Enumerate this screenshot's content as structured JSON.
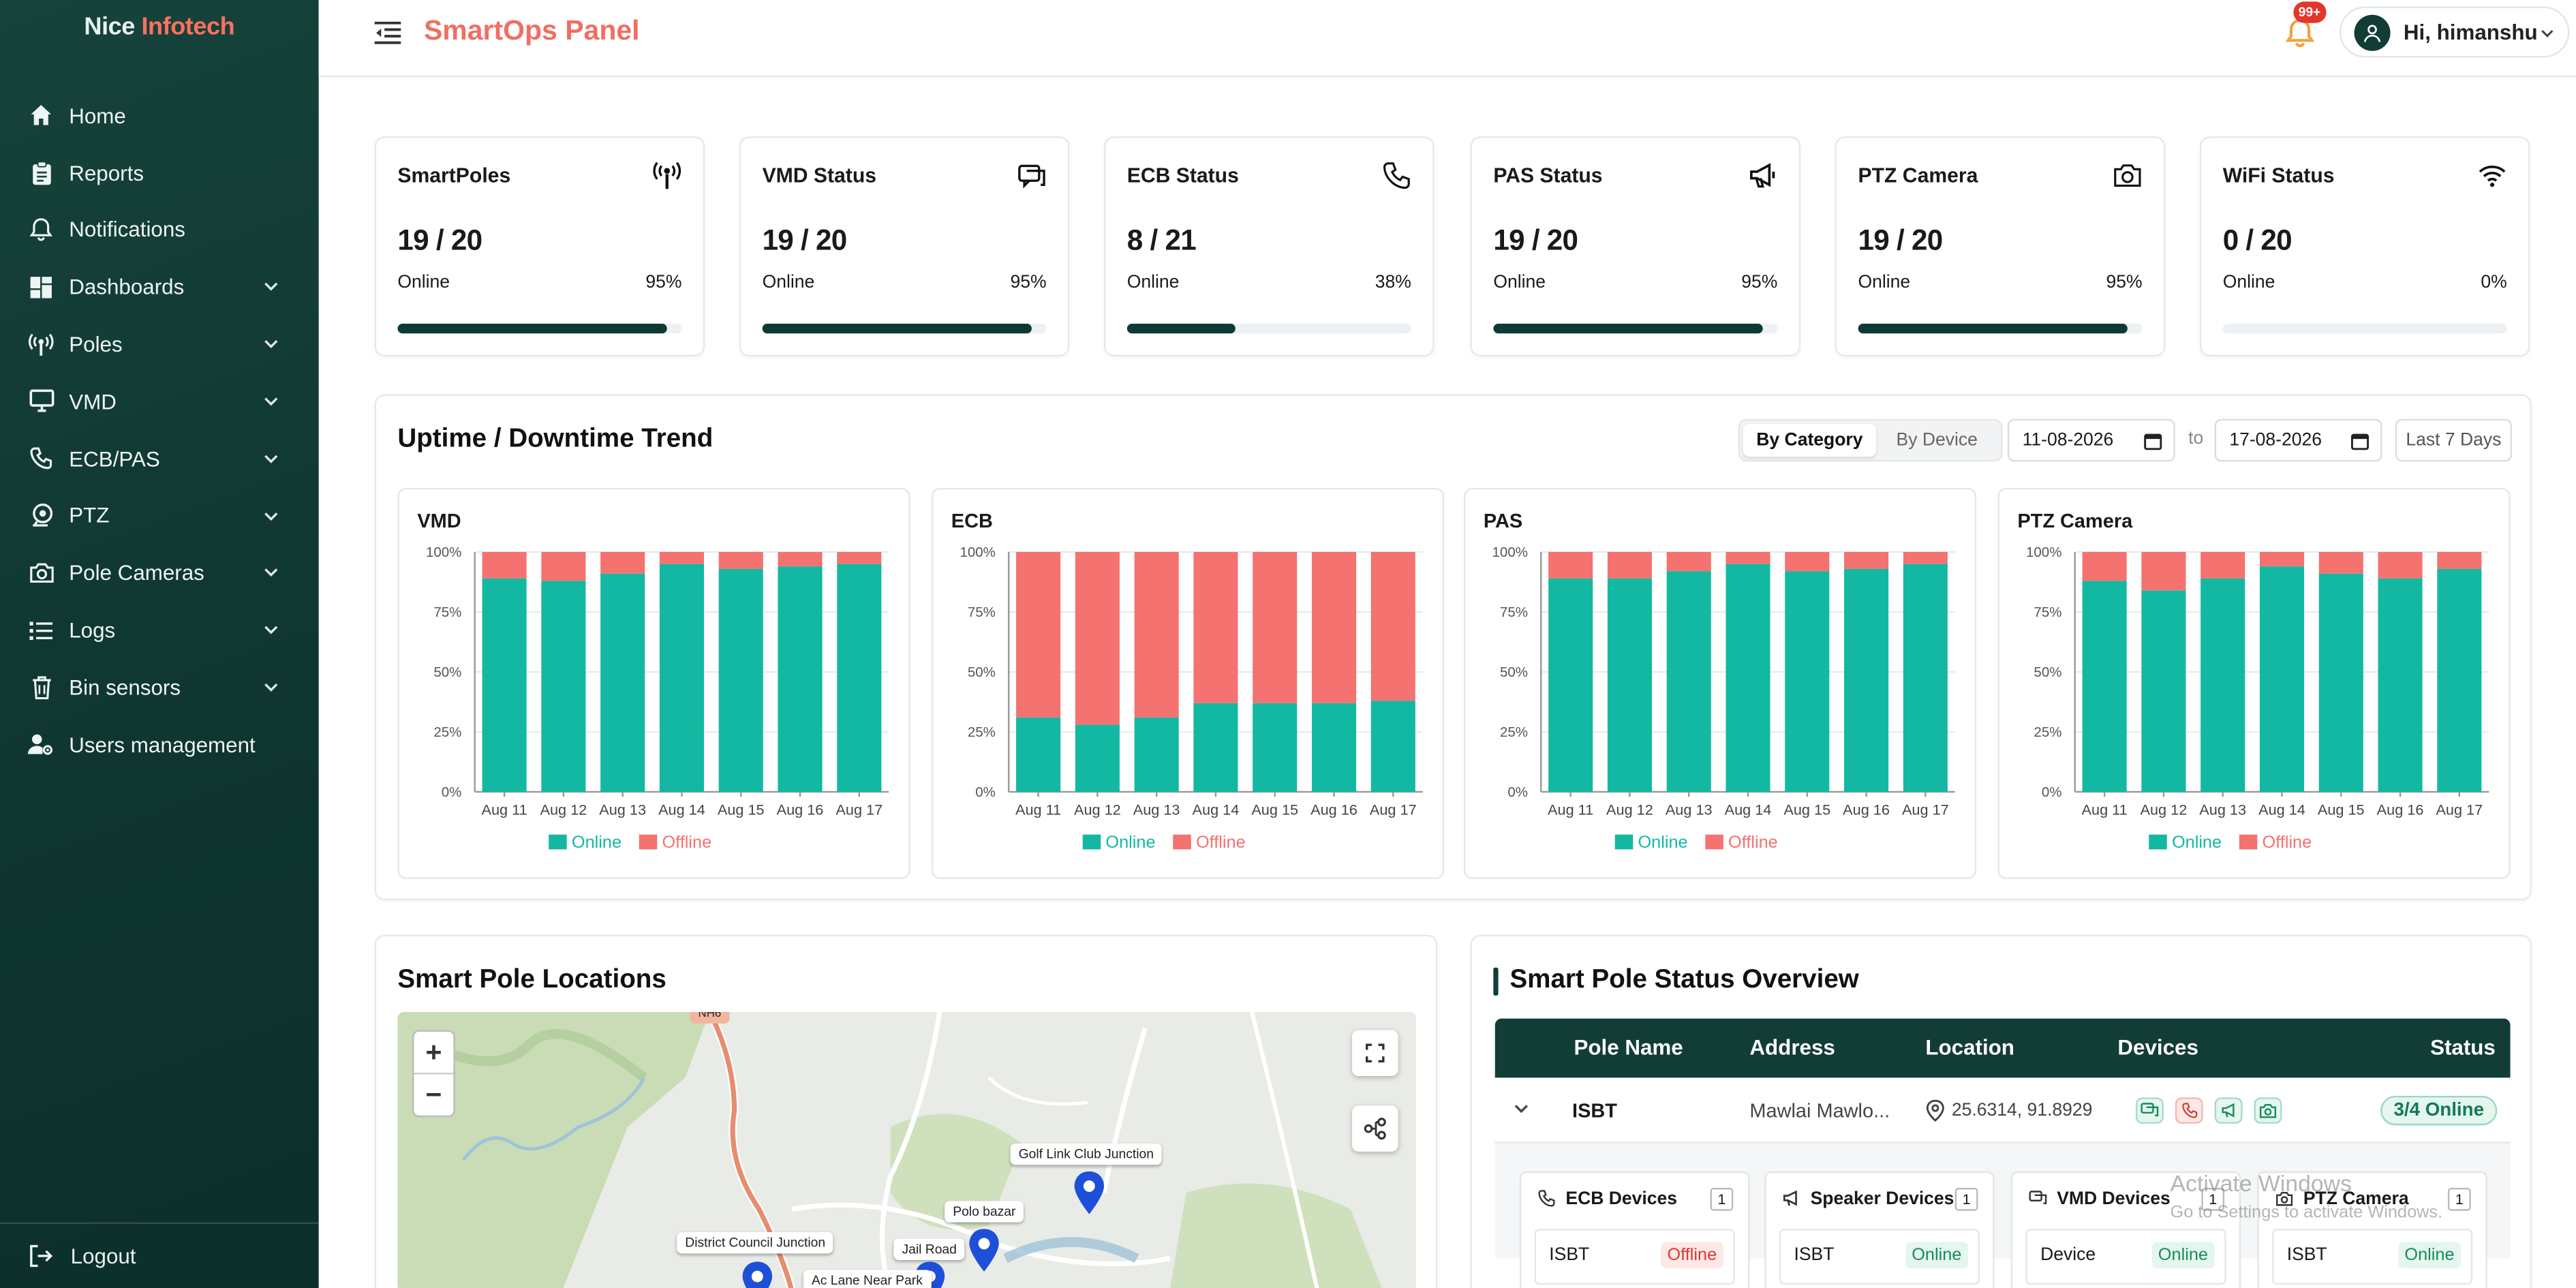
{
  "brand": {
    "part1": "Nice",
    "part2": "Infotech"
  },
  "nav": [
    {
      "label": "Home",
      "icon": "home-icon",
      "expandable": false
    },
    {
      "label": "Reports",
      "icon": "reports-icon",
      "expandable": false
    },
    {
      "label": "Notifications",
      "icon": "bell-icon",
      "expandable": false
    },
    {
      "label": "Dashboards",
      "icon": "dashboard-icon",
      "expandable": true
    },
    {
      "label": "Poles",
      "icon": "antenna-icon",
      "expandable": true
    },
    {
      "label": "VMD",
      "icon": "monitor-icon",
      "expandable": true
    },
    {
      "label": "ECB/PAS",
      "icon": "phone-icon",
      "expandable": true
    },
    {
      "label": "PTZ",
      "icon": "ptz-camera-icon",
      "expandable": true
    },
    {
      "label": "Pole Cameras",
      "icon": "camera-icon",
      "expandable": true
    },
    {
      "label": "Logs",
      "icon": "list-icon",
      "expandable": true
    },
    {
      "label": "Bin sensors",
      "icon": "bin-icon",
      "expandable": true
    },
    {
      "label": "Users management",
      "icon": "users-gear-icon",
      "expandable": false
    }
  ],
  "logout_label": "Logout",
  "header": {
    "title": "SmartOps Panel",
    "notification_badge": "99+",
    "greeting": "Hi, himanshu"
  },
  "stats": [
    {
      "title": "SmartPoles",
      "icon": "antenna-icon",
      "value": "19 / 20",
      "online_label": "Online",
      "percent_label": "95%",
      "percent": 95
    },
    {
      "title": "VMD Status",
      "icon": "vmd-chat-icon",
      "value": "19 / 20",
      "online_label": "Online",
      "percent_label": "95%",
      "percent": 95
    },
    {
      "title": "ECB Status",
      "icon": "phone-icon",
      "value": "8 / 21",
      "online_label": "Online",
      "percent_label": "38%",
      "percent": 38
    },
    {
      "title": "PAS Status",
      "icon": "megaphone-icon",
      "value": "19 / 20",
      "online_label": "Online",
      "percent_label": "95%",
      "percent": 95
    },
    {
      "title": "PTZ Camera",
      "icon": "camera-icon",
      "value": "19 / 20",
      "online_label": "Online",
      "percent_label": "95%",
      "percent": 95
    },
    {
      "title": "WiFi Status",
      "icon": "wifi-icon",
      "value": "0 / 20",
      "online_label": "Online",
      "percent_label": "0%",
      "percent": 0
    }
  ],
  "trend": {
    "title": "Uptime / Downtime Trend",
    "toggle": {
      "active": "By Category",
      "inactive": "By Device"
    },
    "date_from": "11-08-2026",
    "date_to": "17-08-2026",
    "to_label": "to",
    "range_button": "Last 7 Days"
  },
  "chart_data": [
    {
      "type": "bar",
      "stacked": true,
      "title": "VMD",
      "categories": [
        "Aug 11",
        "Aug 12",
        "Aug 13",
        "Aug 14",
        "Aug 15",
        "Aug 16",
        "Aug 17"
      ],
      "series": [
        {
          "name": "Online",
          "values": [
            89,
            88,
            91,
            95,
            93,
            94,
            95
          ]
        },
        {
          "name": "Offline",
          "values": [
            11,
            12,
            9,
            5,
            7,
            6,
            5
          ]
        }
      ],
      "y_ticks": [
        "0%",
        "25%",
        "50%",
        "75%",
        "100%"
      ],
      "ylim": [
        0,
        100
      ],
      "legend": "bottom"
    },
    {
      "type": "bar",
      "stacked": true,
      "title": "ECB",
      "categories": [
        "Aug 11",
        "Aug 12",
        "Aug 13",
        "Aug 14",
        "Aug 15",
        "Aug 16",
        "Aug 17"
      ],
      "series": [
        {
          "name": "Online",
          "values": [
            31,
            28,
            31,
            37,
            37,
            37,
            38
          ]
        },
        {
          "name": "Offline",
          "values": [
            69,
            72,
            69,
            63,
            63,
            63,
            62
          ]
        }
      ],
      "y_ticks": [
        "0%",
        "25%",
        "50%",
        "75%",
        "100%"
      ],
      "ylim": [
        0,
        100
      ],
      "legend": "bottom"
    },
    {
      "type": "bar",
      "stacked": true,
      "title": "PAS",
      "categories": [
        "Aug 11",
        "Aug 12",
        "Aug 13",
        "Aug 14",
        "Aug 15",
        "Aug 16",
        "Aug 17"
      ],
      "series": [
        {
          "name": "Online",
          "values": [
            89,
            89,
            92,
            95,
            92,
            93,
            95
          ]
        },
        {
          "name": "Offline",
          "values": [
            11,
            11,
            8,
            5,
            8,
            7,
            5
          ]
        }
      ],
      "y_ticks": [
        "0%",
        "25%",
        "50%",
        "75%",
        "100%"
      ],
      "ylim": [
        0,
        100
      ],
      "legend": "bottom"
    },
    {
      "type": "bar",
      "stacked": true,
      "title": "PTZ Camera",
      "categories": [
        "Aug 11",
        "Aug 12",
        "Aug 13",
        "Aug 14",
        "Aug 15",
        "Aug 16",
        "Aug 17"
      ],
      "series": [
        {
          "name": "Online",
          "values": [
            88,
            84,
            89,
            94,
            91,
            89,
            93
          ]
        },
        {
          "name": "Offline",
          "values": [
            12,
            16,
            11,
            6,
            9,
            11,
            7
          ]
        }
      ],
      "y_ticks": [
        "0%",
        "25%",
        "50%",
        "75%",
        "100%"
      ],
      "ylim": [
        0,
        100
      ],
      "legend": "bottom"
    }
  ],
  "colors": {
    "online": "#13b8a2",
    "offline": "#f47270",
    "primary_dark": "#123d37",
    "accent": "#f06f62"
  },
  "map": {
    "title": "Smart Pole Locations",
    "zoom_in": "+",
    "zoom_out": "−",
    "road_label": "NH6",
    "labels": [
      "Golf Link Club Junction",
      "Polo bazar",
      "District Council Junction",
      "Jail Road",
      "Ac Lane Near Park"
    ]
  },
  "status_overview": {
    "title": "Smart Pole Status Overview",
    "columns": [
      "Pole Name",
      "Address",
      "Location",
      "Devices",
      "Status"
    ],
    "rows": [
      {
        "name": "ISBT",
        "address": "Mawlai Mawlo...",
        "location": "25.6314, 91.8929",
        "devices": [
          "vmd",
          "ecb",
          "pas",
          "camera"
        ],
        "status": "3/4 Online"
      }
    ],
    "device_cards": [
      {
        "title": "ECB Devices",
        "icon": "phone-icon",
        "count": "1",
        "device": "ISBT",
        "state": "Offline"
      },
      {
        "title": "Speaker Devices",
        "icon": "megaphone-icon",
        "count": "1",
        "device": "ISBT",
        "state": "Online"
      },
      {
        "title": "VMD Devices",
        "icon": "vmd-chat-icon",
        "count": "1",
        "device": "Device",
        "state": "Online"
      },
      {
        "title": "PTZ Camera",
        "icon": "camera-icon",
        "count": "1",
        "device": "ISBT",
        "state": "Online"
      }
    ]
  },
  "watermark": {
    "line1": "Activate Windows",
    "line2": "Go to Settings to activate Windows."
  }
}
